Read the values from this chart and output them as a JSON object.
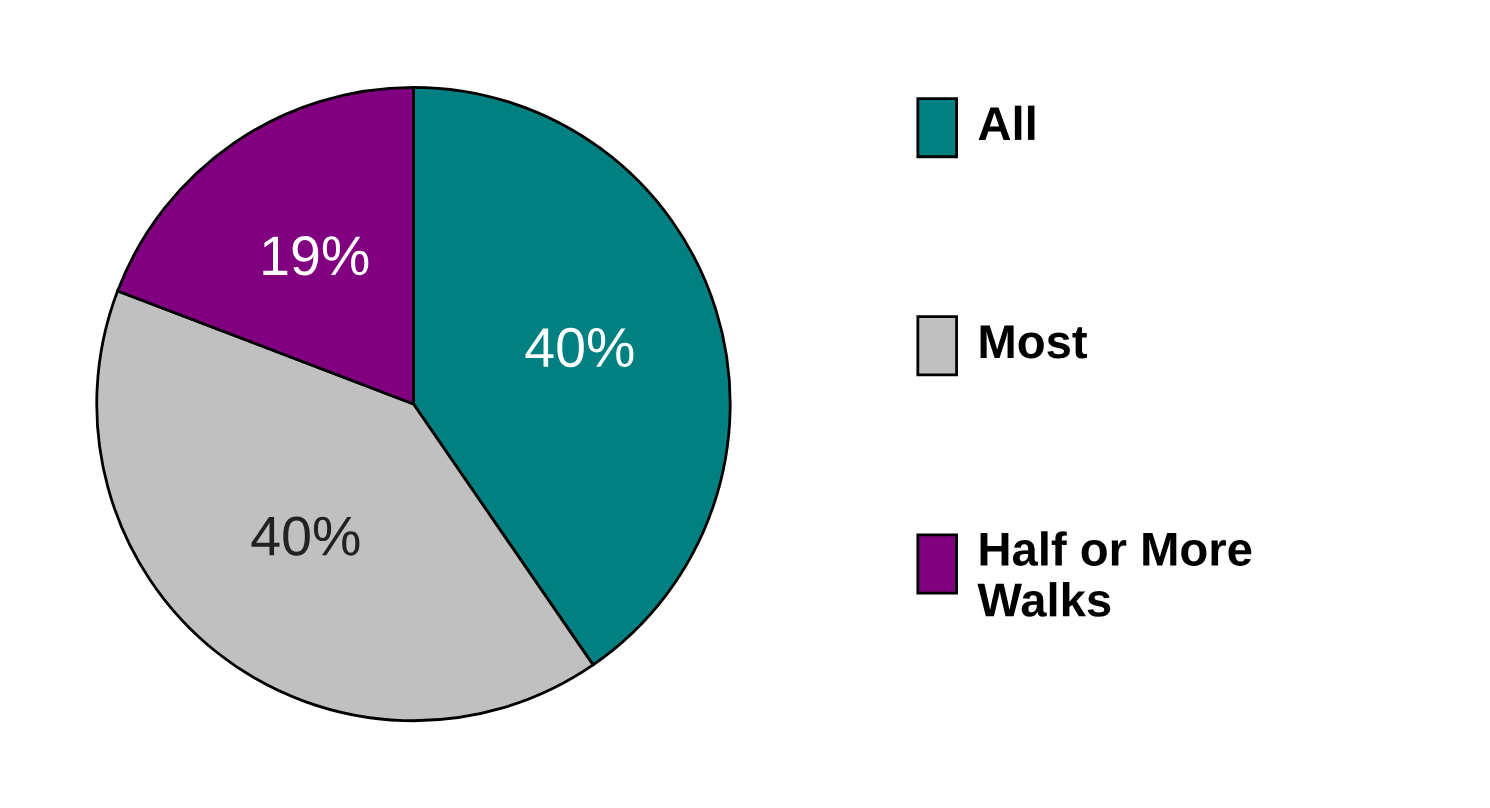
{
  "chart_data": {
    "type": "pie",
    "categories": [
      "All",
      "Most",
      "Half or More\nWalks"
    ],
    "values": [
      40,
      40,
      19
    ],
    "colors": [
      "#008080",
      "#c0c0c0",
      "#800080"
    ],
    "value_labels": [
      "40%",
      "40%",
      "19%"
    ],
    "legend": "right"
  }
}
